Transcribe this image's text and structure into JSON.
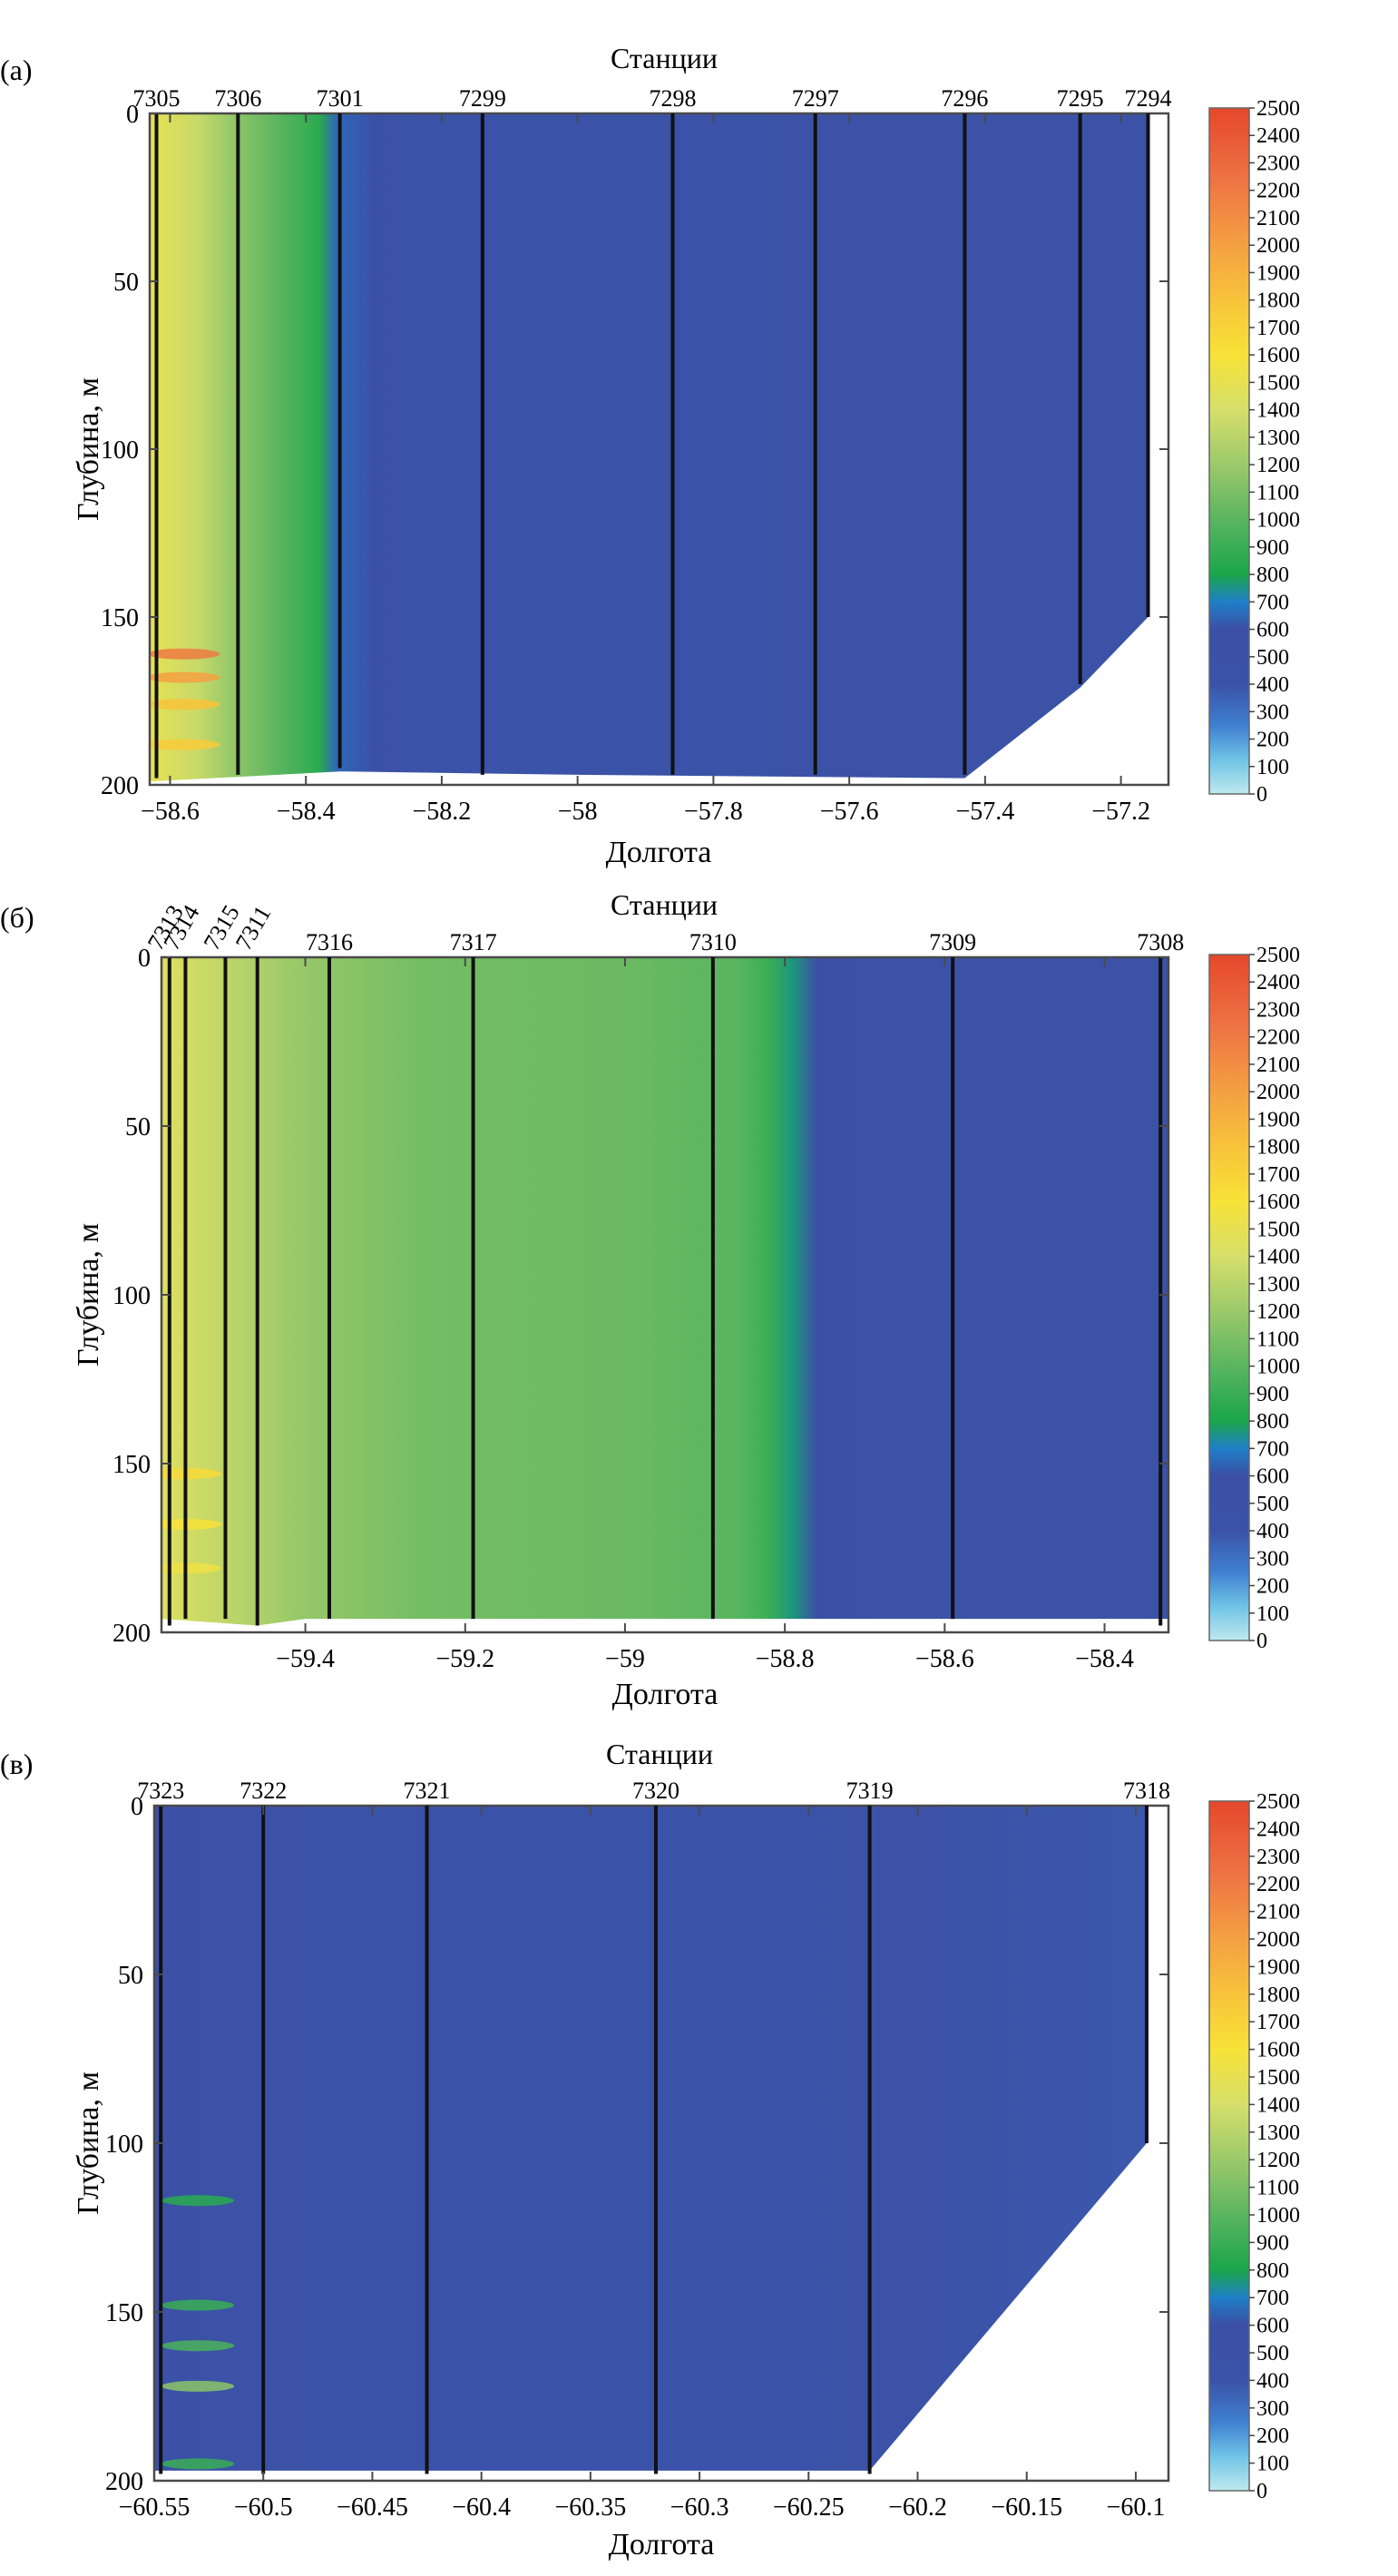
{
  "chart_data": [
    {
      "type": "heatmap",
      "panel_label": "(а)",
      "top_axis_title": "Станции",
      "xlabel": "Долгота",
      "ylabel": "Глубина, м",
      "xlim": [
        -58.63,
        -57.13
      ],
      "ylim": [
        200,
        0
      ],
      "x_ticks": [
        -58.6,
        -58.4,
        -58.2,
        -58,
        -57.8,
        -57.6,
        -57.4,
        -57.2
      ],
      "x_tick_labels": [
        "−58.6",
        "−58.4",
        "−58.2",
        "−58",
        "−57.8",
        "−57.6",
        "−57.4",
        "−57.2"
      ],
      "y_ticks": [
        0,
        50,
        100,
        150,
        200
      ],
      "y_tick_labels": [
        "0",
        "50",
        "100",
        "150",
        "200"
      ],
      "colorbar": {
        "min": 0,
        "max": 2500,
        "step": 100,
        "tick_labels": [
          "2500",
          "2400",
          "2300",
          "2200",
          "2100",
          "2000",
          "1900",
          "1800",
          "1700",
          "1600",
          "1500",
          "1400",
          "1300",
          "1200",
          "1100",
          "1000",
          "900",
          "800",
          "700",
          "600",
          "500",
          "400",
          "300",
          "200",
          "100",
          "0"
        ]
      },
      "stations": [
        {
          "id": "7305",
          "lon": -58.62,
          "max_depth": 198
        },
        {
          "id": "7306",
          "lon": -58.5,
          "max_depth": 197
        },
        {
          "id": "7301",
          "lon": -58.35,
          "max_depth": 195
        },
        {
          "id": "7299",
          "lon": -58.14,
          "max_depth": 197
        },
        {
          "id": "7298",
          "lon": -57.86,
          "max_depth": 197
        },
        {
          "id": "7297",
          "lon": -57.65,
          "max_depth": 197
        },
        {
          "id": "7296",
          "lon": -57.43,
          "max_depth": 197
        },
        {
          "id": "7295",
          "lon": -57.26,
          "max_depth": 170
        },
        {
          "id": "7294",
          "lon": -57.16,
          "max_depth": 150
        }
      ],
      "bottom_outline": [
        [
          -58.63,
          199
        ],
        [
          -58.35,
          196
        ],
        [
          -58.0,
          197
        ],
        [
          -57.43,
          198
        ],
        [
          -57.26,
          171
        ],
        [
          -57.16,
          150
        ]
      ],
      "field_profile": [
        {
          "lon": -58.63,
          "value": 1500
        },
        {
          "lon": -58.56,
          "value": 1350
        },
        {
          "lon": -58.5,
          "value": 1150
        },
        {
          "lon": -58.44,
          "value": 1000
        },
        {
          "lon": -58.38,
          "value": 850
        },
        {
          "lon": -58.355,
          "value": 650
        },
        {
          "lon": -58.3,
          "value": 500
        },
        {
          "lon": -58.22,
          "value": 420
        },
        {
          "lon": -57.9,
          "value": 440
        },
        {
          "lon": -57.6,
          "value": 460
        },
        {
          "lon": -57.13,
          "value": 470
        }
      ],
      "hotspots": [
        {
          "lon": -58.58,
          "depth": 161,
          "value": 2200
        },
        {
          "lon": -58.58,
          "depth": 168,
          "value": 2000
        },
        {
          "lon": -58.58,
          "depth": 176,
          "value": 1800
        },
        {
          "lon": -58.58,
          "depth": 188,
          "value": 1750
        }
      ]
    },
    {
      "type": "heatmap",
      "panel_label": "(б)",
      "top_axis_title": "Станции",
      "xlabel": "Долгота",
      "ylabel": "Глубина, м",
      "xlim": [
        -59.58,
        -58.32
      ],
      "ylim": [
        200,
        0
      ],
      "x_ticks": [
        -59.4,
        -59.2,
        -59,
        -58.8,
        -58.6,
        -58.4
      ],
      "x_tick_labels": [
        "−59.4",
        "−59.2",
        "−59",
        "−58.8",
        "−58.6",
        "−58.4"
      ],
      "y_ticks": [
        0,
        50,
        100,
        150,
        200
      ],
      "y_tick_labels": [
        "0",
        "50",
        "100",
        "150",
        "200"
      ],
      "colorbar": {
        "min": 0,
        "max": 2500,
        "step": 100,
        "tick_labels": [
          "2500",
          "2400",
          "2300",
          "2200",
          "2100",
          "2000",
          "1900",
          "1800",
          "1700",
          "1600",
          "1500",
          "1400",
          "1300",
          "1200",
          "1100",
          "1000",
          "900",
          "800",
          "700",
          "600",
          "500",
          "400",
          "300",
          "200",
          "100",
          "0"
        ]
      },
      "stations": [
        {
          "id": "7313",
          "lon": -59.57,
          "max_depth": 198
        },
        {
          "id": "7314",
          "lon": -59.55,
          "max_depth": 196
        },
        {
          "id": "7315",
          "lon": -59.5,
          "max_depth": 196
        },
        {
          "id": "7311",
          "lon": -59.46,
          "max_depth": 198
        },
        {
          "id": "7316",
          "lon": -59.37,
          "max_depth": 196
        },
        {
          "id": "7317",
          "lon": -59.19,
          "max_depth": 196
        },
        {
          "id": "7310",
          "lon": -58.89,
          "max_depth": 196
        },
        {
          "id": "7309",
          "lon": -58.59,
          "max_depth": 196
        },
        {
          "id": "7308",
          "lon": -58.33,
          "max_depth": 198
        }
      ],
      "bottom_outline": [
        [
          -59.58,
          196
        ],
        [
          -59.46,
          198
        ],
        [
          -59.4,
          196
        ],
        [
          -58.32,
          196
        ]
      ],
      "field_profile": [
        {
          "lon": -59.58,
          "value": 1450
        },
        {
          "lon": -59.5,
          "value": 1320
        },
        {
          "lon": -59.4,
          "value": 1180
        },
        {
          "lon": -59.25,
          "value": 1080
        },
        {
          "lon": -59.0,
          "value": 1050
        },
        {
          "lon": -58.86,
          "value": 1000
        },
        {
          "lon": -58.82,
          "value": 900
        },
        {
          "lon": -58.79,
          "value": 760
        },
        {
          "lon": -58.76,
          "value": 600
        },
        {
          "lon": -58.7,
          "value": 470
        },
        {
          "lon": -58.5,
          "value": 460
        },
        {
          "lon": -58.32,
          "value": 450
        }
      ],
      "hotspots": [
        {
          "lon": -59.55,
          "depth": 153,
          "value": 1650
        },
        {
          "lon": -59.55,
          "depth": 168,
          "value": 1600
        },
        {
          "lon": -59.55,
          "depth": 181,
          "value": 1550
        }
      ]
    },
    {
      "type": "heatmap",
      "panel_label": "(в)",
      "top_axis_title": "Станции",
      "xlabel": "Долгота",
      "ylabel": "Глубина, м",
      "xlim": [
        -60.55,
        -60.085
      ],
      "ylim": [
        200,
        0
      ],
      "x_ticks": [
        -60.55,
        -60.5,
        -60.45,
        -60.4,
        -60.35,
        -60.3,
        -60.25,
        -60.2,
        -60.15,
        -60.1
      ],
      "x_tick_labels": [
        "−60.55",
        "−60.5",
        "−60.45",
        "−60.4",
        "−60.35",
        "−60.3",
        "−60.25",
        "−60.2",
        "−60.15",
        "−60.1"
      ],
      "y_ticks": [
        0,
        50,
        100,
        150,
        200
      ],
      "y_tick_labels": [
        "0",
        "50",
        "100",
        "150",
        "200"
      ],
      "colorbar": {
        "min": 0,
        "max": 2500,
        "step": 100,
        "tick_labels": [
          "2500",
          "2400",
          "2300",
          "2200",
          "2100",
          "2000",
          "1900",
          "1800",
          "1700",
          "1600",
          "1500",
          "1400",
          "1300",
          "1200",
          "1100",
          "1000",
          "900",
          "800",
          "700",
          "600",
          "500",
          "400",
          "300",
          "200",
          "100",
          "0"
        ]
      },
      "stations": [
        {
          "id": "7323",
          "lon": -60.547,
          "max_depth": 198
        },
        {
          "id": "7322",
          "lon": -60.5,
          "max_depth": 198
        },
        {
          "id": "7321",
          "lon": -60.425,
          "max_depth": 198
        },
        {
          "id": "7320",
          "lon": -60.32,
          "max_depth": 198
        },
        {
          "id": "7319",
          "lon": -60.222,
          "max_depth": 198
        },
        {
          "id": "7318",
          "lon": -60.095,
          "max_depth": 100
        }
      ],
      "bottom_outline": [
        [
          -60.55,
          197
        ],
        [
          -60.222,
          197
        ],
        [
          -60.095,
          100
        ]
      ],
      "field_profile": [
        {
          "lon": -60.55,
          "value": 520
        },
        {
          "lon": -60.5,
          "value": 470
        },
        {
          "lon": -60.45,
          "value": 440
        },
        {
          "lon": -60.3,
          "value": 440
        },
        {
          "lon": -60.2,
          "value": 450
        },
        {
          "lon": -60.085,
          "value": 380
        }
      ],
      "hotspots": [
        {
          "lon": -60.53,
          "depth": 117,
          "value": 850
        },
        {
          "lon": -60.53,
          "depth": 148,
          "value": 900
        },
        {
          "lon": -60.53,
          "depth": 160,
          "value": 950
        },
        {
          "lon": -60.53,
          "depth": 172,
          "value": 1150
        },
        {
          "lon": -60.53,
          "depth": 195,
          "value": 900
        }
      ]
    }
  ]
}
